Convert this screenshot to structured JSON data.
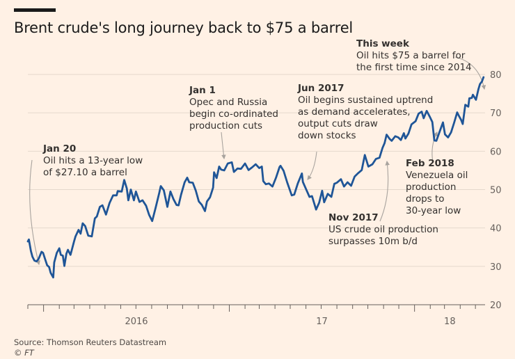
{
  "header": {
    "title": "Brent crude's long journey back to $75 a barrel"
  },
  "footer": {
    "source": "Source: Thomson Reuters Datastream",
    "copyright": "© FT"
  },
  "annotations": [
    {
      "id": "jan20",
      "heading": "Jan 20",
      "text": "Oil hits a 13-year low\nof $27.10 a barrel"
    },
    {
      "id": "jan1",
      "heading": "Jan 1",
      "text": "Opec and Russia\nbegin co-ordinated\nproduction cuts"
    },
    {
      "id": "jun2017",
      "heading": "Jun 2017",
      "text": "Oil begins sustained uptrend\nas demand accelerates,\noutput cuts draw\ndown stocks"
    },
    {
      "id": "nov2017",
      "heading": "Nov 2017",
      "text": "US crude oil production\nsurpasses 10m b/d"
    },
    {
      "id": "feb2018",
      "heading": "Feb 2018",
      "text": "Venezuela oil\nproduction\ndrops to\n30-year low"
    },
    {
      "id": "thisweek",
      "heading": "This week",
      "text": "Oil hits $75 a barrel for\nthe first time since 2014"
    }
  ],
  "colors": {
    "line": "#1f5597",
    "background": "#fff1e5",
    "grid": "#e4d8cc",
    "axis": "#66605c",
    "arrow": "#a8a39e"
  },
  "chart_data": {
    "type": "line",
    "title": "Brent crude's long journey back to $75 a barrel",
    "xlabel": "",
    "ylabel": "",
    "ylim": [
      20,
      80
    ],
    "yticks": [
      20,
      30,
      40,
      50,
      60,
      70,
      80
    ],
    "y_axis_position": "right",
    "grid": "horizontal",
    "xlim": [
      "2015-12-01",
      "2018-05-20"
    ],
    "x_tick_labels": [
      {
        "date": "2016-01-01",
        "label": "2016"
      },
      {
        "date": "2017-01-01",
        "label": "17"
      },
      {
        "date": "2018-01-01",
        "label": "18"
      }
    ],
    "series": [
      {
        "points": [
          [
            "2015-12-01",
            36.5
          ],
          [
            "2015-12-03",
            37.0
          ],
          [
            "2015-12-07",
            34.0
          ],
          [
            "2015-12-10",
            32.5
          ],
          [
            "2015-12-14",
            31.5
          ],
          [
            "2015-12-18",
            31.3
          ],
          [
            "2015-12-22",
            31.9
          ],
          [
            "2015-12-28",
            33.8
          ],
          [
            "2015-12-31",
            33.5
          ],
          [
            "2016-01-05",
            31.5
          ],
          [
            "2016-01-08",
            30.3
          ],
          [
            "2016-01-12",
            29.8
          ],
          [
            "2016-01-15",
            28.3
          ],
          [
            "2016-01-20",
            27.1
          ],
          [
            "2016-01-22",
            31.0
          ],
          [
            "2016-01-27",
            33.5
          ],
          [
            "2016-02-01",
            34.7
          ],
          [
            "2016-02-04",
            33.0
          ],
          [
            "2016-02-08",
            32.8
          ],
          [
            "2016-02-11",
            30.1
          ],
          [
            "2016-02-15",
            33.3
          ],
          [
            "2016-02-18",
            34.3
          ],
          [
            "2016-02-23",
            33.0
          ],
          [
            "2016-03-01",
            36.5
          ],
          [
            "2016-03-04",
            37.8
          ],
          [
            "2016-03-10",
            39.5
          ],
          [
            "2016-03-14",
            38.5
          ],
          [
            "2016-03-18",
            41.2
          ],
          [
            "2016-03-23",
            40.5
          ],
          [
            "2016-03-29",
            38.0
          ],
          [
            "2016-04-05",
            37.8
          ],
          [
            "2016-04-11",
            42.5
          ],
          [
            "2016-04-15",
            43.0
          ],
          [
            "2016-04-21",
            45.5
          ],
          [
            "2016-04-26",
            45.9
          ],
          [
            "2016-05-03",
            43.5
          ],
          [
            "2016-05-10",
            46.5
          ],
          [
            "2016-05-17",
            48.5
          ],
          [
            "2016-05-24",
            48.5
          ],
          [
            "2016-05-26",
            49.6
          ],
          [
            "2016-06-03",
            49.5
          ],
          [
            "2016-06-08",
            52.5
          ],
          [
            "2016-06-13",
            50.3
          ],
          [
            "2016-06-16",
            47.2
          ],
          [
            "2016-06-21",
            50.0
          ],
          [
            "2016-06-27",
            47.2
          ],
          [
            "2016-07-01",
            49.5
          ],
          [
            "2016-07-08",
            46.8
          ],
          [
            "2016-07-14",
            47.2
          ],
          [
            "2016-07-21",
            45.8
          ],
          [
            "2016-07-27",
            43.4
          ],
          [
            "2016-08-02",
            41.8
          ],
          [
            "2016-08-09",
            45.4
          ],
          [
            "2016-08-16",
            49.2
          ],
          [
            "2016-08-19",
            50.9
          ],
          [
            "2016-08-25",
            49.8
          ],
          [
            "2016-09-01",
            45.5
          ],
          [
            "2016-09-07",
            49.5
          ],
          [
            "2016-09-13",
            47.5
          ],
          [
            "2016-09-19",
            46.0
          ],
          [
            "2016-09-23",
            45.9
          ],
          [
            "2016-09-28",
            48.7
          ],
          [
            "2016-10-05",
            51.9
          ],
          [
            "2016-10-10",
            53.1
          ],
          [
            "2016-10-14",
            51.9
          ],
          [
            "2016-10-21",
            51.8
          ],
          [
            "2016-10-27",
            49.7
          ],
          [
            "2016-11-02",
            46.9
          ],
          [
            "2016-11-08",
            46.0
          ],
          [
            "2016-11-14",
            44.4
          ],
          [
            "2016-11-18",
            46.9
          ],
          [
            "2016-11-24",
            48.0
          ],
          [
            "2016-11-30",
            50.5
          ],
          [
            "2016-12-02",
            54.5
          ],
          [
            "2016-12-07",
            53.0
          ],
          [
            "2016-12-12",
            56.0
          ],
          [
            "2016-12-16",
            55.2
          ],
          [
            "2016-12-22",
            55.0
          ],
          [
            "2016-12-29",
            56.8
          ],
          [
            "2017-01-06",
            57.1
          ],
          [
            "2017-01-10",
            54.6
          ],
          [
            "2017-01-17",
            55.5
          ],
          [
            "2017-01-24",
            55.4
          ],
          [
            "2017-02-01",
            56.8
          ],
          [
            "2017-02-08",
            55.1
          ],
          [
            "2017-02-15",
            55.8
          ],
          [
            "2017-02-22",
            56.6
          ],
          [
            "2017-03-01",
            55.6
          ],
          [
            "2017-03-06",
            56.0
          ],
          [
            "2017-03-09",
            52.2
          ],
          [
            "2017-03-14",
            51.4
          ],
          [
            "2017-03-20",
            51.6
          ],
          [
            "2017-03-27",
            50.8
          ],
          [
            "2017-04-03",
            53.1
          ],
          [
            "2017-04-10",
            55.9
          ],
          [
            "2017-04-12",
            56.2
          ],
          [
            "2017-04-18",
            54.9
          ],
          [
            "2017-04-25",
            51.9
          ],
          [
            "2017-05-04",
            48.5
          ],
          [
            "2017-05-09",
            48.7
          ],
          [
            "2017-05-16",
            51.6
          ],
          [
            "2017-05-24",
            54.2
          ],
          [
            "2017-05-26",
            52.0
          ],
          [
            "2017-06-02",
            49.9
          ],
          [
            "2017-06-08",
            48.1
          ],
          [
            "2017-06-13",
            48.3
          ],
          [
            "2017-06-21",
            44.8
          ],
          [
            "2017-06-27",
            46.6
          ],
          [
            "2017-07-03",
            49.7
          ],
          [
            "2017-07-07",
            46.7
          ],
          [
            "2017-07-14",
            48.9
          ],
          [
            "2017-07-21",
            48.1
          ],
          [
            "2017-07-27",
            51.5
          ],
          [
            "2017-08-01",
            51.8
          ],
          [
            "2017-08-09",
            52.7
          ],
          [
            "2017-08-15",
            50.8
          ],
          [
            "2017-08-22",
            51.9
          ],
          [
            "2017-08-29",
            51.0
          ],
          [
            "2017-09-05",
            53.4
          ],
          [
            "2017-09-12",
            54.3
          ],
          [
            "2017-09-19",
            55.1
          ],
          [
            "2017-09-25",
            59.0
          ],
          [
            "2017-10-02",
            56.0
          ],
          [
            "2017-10-10",
            56.6
          ],
          [
            "2017-10-17",
            58.0
          ],
          [
            "2017-10-24",
            58.3
          ],
          [
            "2017-10-30",
            60.9
          ],
          [
            "2017-11-03",
            62.1
          ],
          [
            "2017-11-07",
            64.3
          ],
          [
            "2017-11-13",
            63.2
          ],
          [
            "2017-11-17",
            62.7
          ],
          [
            "2017-11-24",
            63.9
          ],
          [
            "2017-11-30",
            63.6
          ],
          [
            "2017-12-05",
            62.9
          ],
          [
            "2017-12-11",
            64.7
          ],
          [
            "2017-12-14",
            63.3
          ],
          [
            "2017-12-20",
            64.6
          ],
          [
            "2017-12-26",
            67.0
          ],
          [
            "2018-01-03",
            67.8
          ],
          [
            "2018-01-09",
            69.8
          ],
          [
            "2018-01-15",
            70.3
          ],
          [
            "2018-01-19",
            68.6
          ],
          [
            "2018-01-25",
            70.5
          ],
          [
            "2018-01-31",
            69.0
          ],
          [
            "2018-02-05",
            67.6
          ],
          [
            "2018-02-09",
            62.8
          ],
          [
            "2018-02-13",
            62.7
          ],
          [
            "2018-02-20",
            65.3
          ],
          [
            "2018-02-26",
            67.5
          ],
          [
            "2018-03-02",
            64.4
          ],
          [
            "2018-03-08",
            63.6
          ],
          [
            "2018-03-14",
            64.9
          ],
          [
            "2018-03-20",
            67.4
          ],
          [
            "2018-03-26",
            70.1
          ],
          [
            "2018-03-29",
            69.3
          ],
          [
            "2018-04-03",
            68.1
          ],
          [
            "2018-04-06",
            67.1
          ],
          [
            "2018-04-11",
            72.1
          ],
          [
            "2018-04-17",
            71.6
          ],
          [
            "2018-04-19",
            73.8
          ],
          [
            "2018-04-24",
            73.9
          ],
          [
            "2018-04-26",
            74.7
          ],
          [
            "2018-05-02",
            73.4
          ],
          [
            "2018-05-07",
            76.2
          ],
          [
            "2018-05-10",
            77.5
          ],
          [
            "2018-05-14",
            78.2
          ],
          [
            "2018-05-17",
            79.3
          ]
        ]
      }
    ]
  }
}
